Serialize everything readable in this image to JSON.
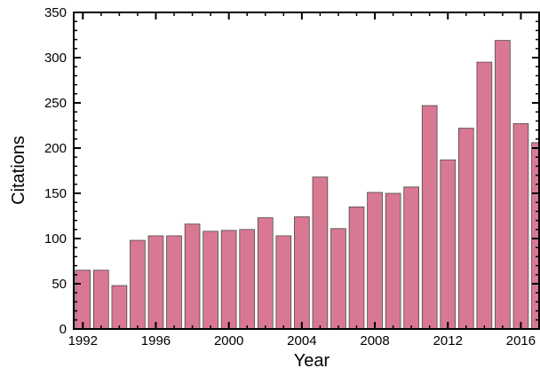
{
  "chart_data": {
    "type": "bar",
    "title": "",
    "xlabel": "Year",
    "ylabel": "Citations",
    "categories": [
      1992,
      1993,
      1994,
      1995,
      1996,
      1997,
      1998,
      1999,
      2000,
      2001,
      2002,
      2003,
      2004,
      2005,
      2006,
      2007,
      2008,
      2009,
      2010,
      2011,
      2012,
      2013,
      2014,
      2015,
      2016,
      2017
    ],
    "values": [
      65,
      65,
      48,
      98,
      103,
      103,
      116,
      108,
      109,
      110,
      123,
      103,
      124,
      168,
      111,
      135,
      151,
      150,
      157,
      247,
      187,
      222,
      295,
      319,
      227,
      206
    ],
    "ylim": [
      0,
      350
    ],
    "xlim": [
      1991.5,
      2017
    ],
    "yticks": [
      0,
      50,
      100,
      150,
      200,
      250,
      300,
      350
    ],
    "xticks": [
      1992,
      1996,
      2000,
      2004,
      2008,
      2012,
      2016
    ],
    "grid": false,
    "bar_color": "#d97893",
    "bar_edge_color": "#4a4a4a"
  }
}
